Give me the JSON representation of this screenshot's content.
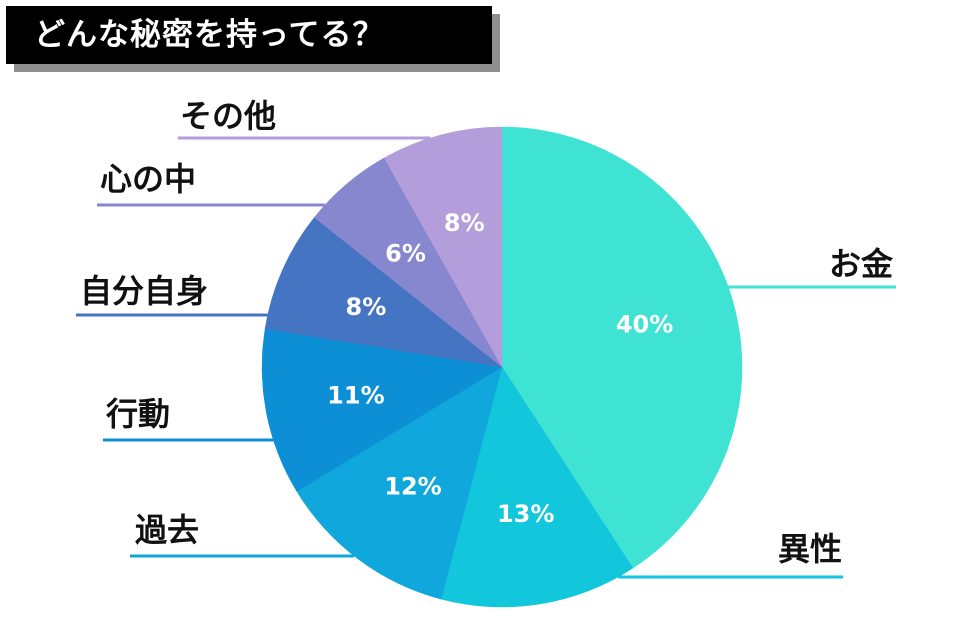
{
  "title": "どんな秘密を持ってる？",
  "chart_data": {
    "type": "pie",
    "title": "どんな秘密を持ってる？",
    "slices": [
      {
        "label": "お金",
        "value": 40,
        "value_label": "40%",
        "color": "#3fe3d3"
      },
      {
        "label": "異性",
        "value": 13,
        "value_label": "13%",
        "color": "#12c6dc"
      },
      {
        "label": "過去",
        "value": 12,
        "value_label": "12%",
        "color": "#10a7dd"
      },
      {
        "label": "行動",
        "value": 11,
        "value_label": "11%",
        "color": "#0d8fd6"
      },
      {
        "label": "自分自身",
        "value": 8,
        "value_label": "8%",
        "color": "#4474c2"
      },
      {
        "label": "心の中",
        "value": 6,
        "value_label": "6%",
        "color": "#8787cf"
      },
      {
        "label": "その他",
        "value": 8,
        "value_label": "8%",
        "color": "#b39ddb"
      }
    ],
    "start": "top",
    "direction": "clockwise",
    "legend": "none"
  }
}
